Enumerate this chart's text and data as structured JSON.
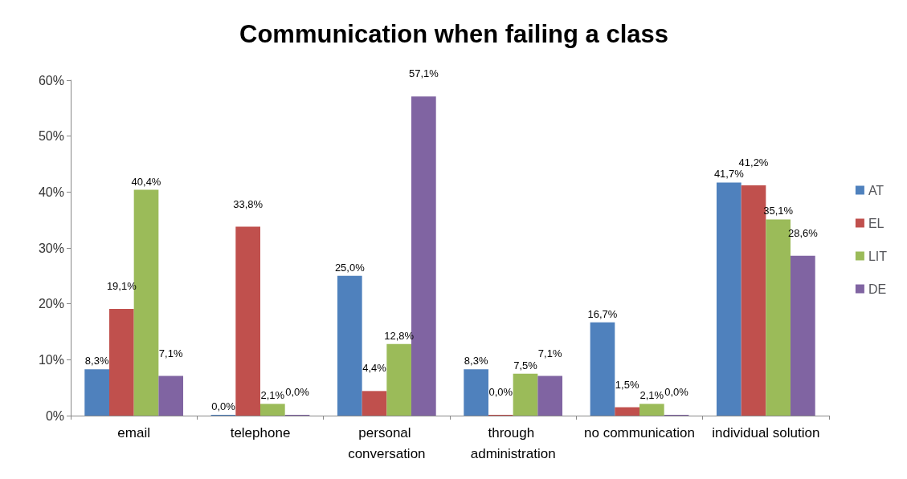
{
  "chart_data": {
    "type": "bar",
    "title": "Communication when failing a class",
    "categories": [
      "email",
      "telephone",
      "personal conversation",
      "through administration",
      "no communication",
      "individual solution"
    ],
    "series": [
      {
        "name": "AT",
        "color": "#4f81bd",
        "values": [
          8.3,
          0.0,
          25.0,
          8.3,
          16.7,
          41.7
        ],
        "value_labels": [
          "8,3%",
          "0,0%",
          "25,0%",
          "8,3%",
          "16,7%",
          "41,7%"
        ]
      },
      {
        "name": "EL",
        "color": "#c0504d",
        "values": [
          19.1,
          33.8,
          4.4,
          0.0,
          1.5,
          41.2
        ],
        "value_labels": [
          "19,1%",
          "33,8%",
          "4,4%",
          "0,0%",
          "1,5%",
          "41,2%"
        ]
      },
      {
        "name": "LIT",
        "color": "#9bbb59",
        "values": [
          40.4,
          2.1,
          12.8,
          7.5,
          2.1,
          35.1
        ],
        "value_labels": [
          "40,4%",
          "2,1%",
          "12,8%",
          "7,5%",
          "2,1%",
          "35,1%"
        ]
      },
      {
        "name": "DE",
        "color": "#8064a2",
        "values": [
          7.1,
          0.0,
          57.1,
          7.1,
          0.0,
          28.6
        ],
        "value_labels": [
          "7,1%",
          "0,0%",
          "57,1%",
          "7,1%",
          "0,0%",
          "28,6%"
        ]
      }
    ],
    "ylim": [
      0,
      60
    ],
    "yticks": [
      {
        "value": 0,
        "label": "0%"
      },
      {
        "value": 10,
        "label": "10%"
      },
      {
        "value": 20,
        "label": "20%"
      },
      {
        "value": 30,
        "label": "30%"
      },
      {
        "value": 40,
        "label": "40%"
      },
      {
        "value": 50,
        "label": "50%"
      },
      {
        "value": 60,
        "label": "60%"
      }
    ],
    "grid": false,
    "legend": "right"
  }
}
